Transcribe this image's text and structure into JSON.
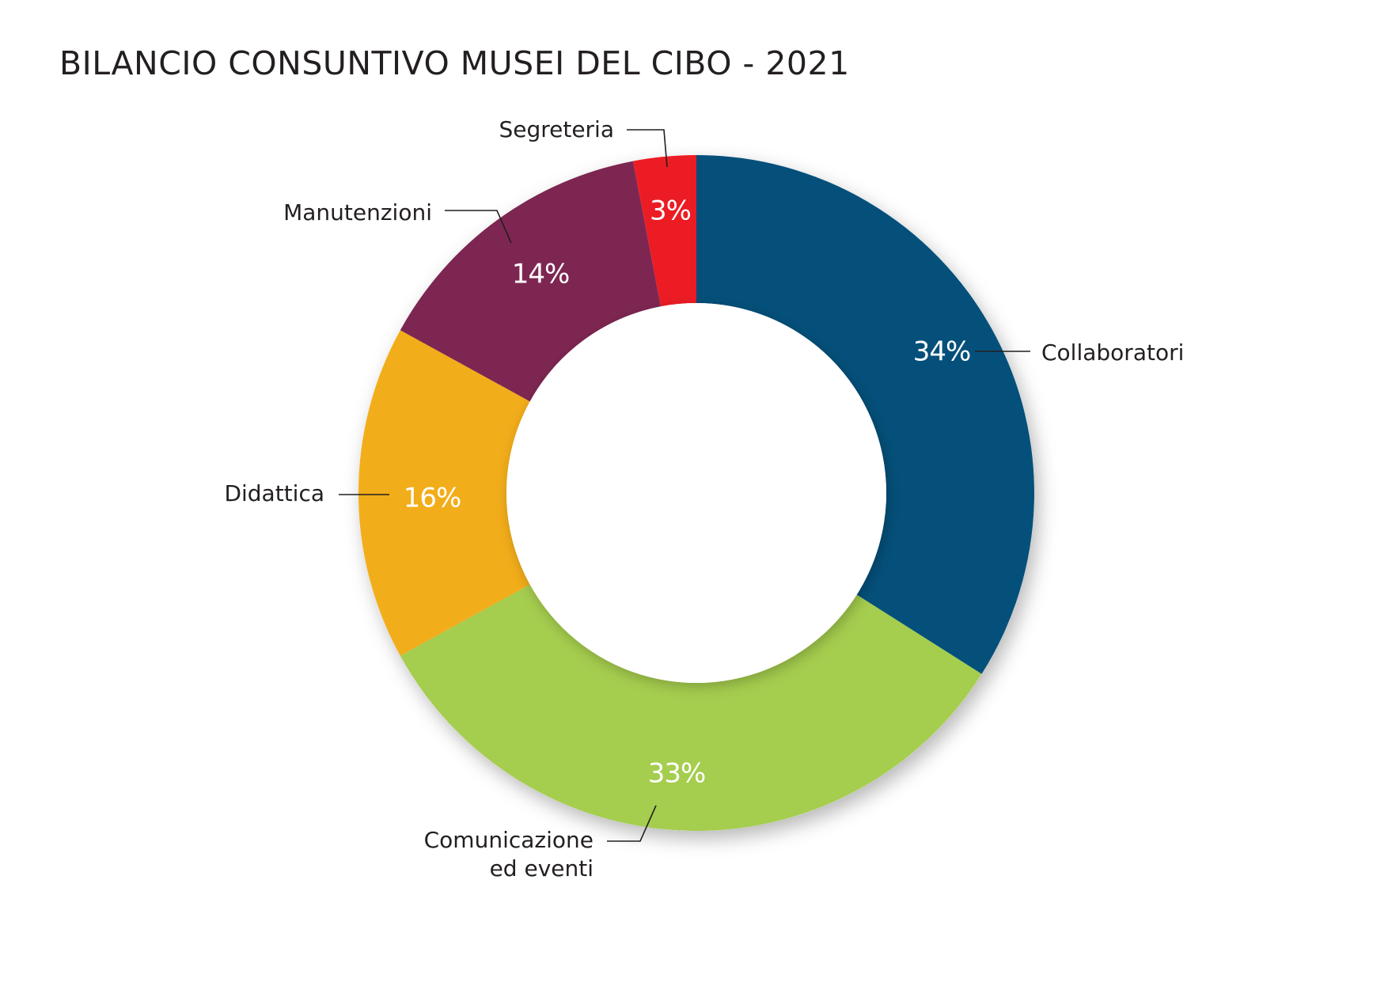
{
  "title": "BILANCIO CONSUNTIVO MUSEI DEL CIBO - 2021",
  "chart_data": {
    "type": "pie",
    "title": "BILANCIO CONSUNTIVO MUSEI DEL CIBO - 2021",
    "style": "donut",
    "unit": "%",
    "slices": [
      {
        "key": "collaboratori",
        "label": "Collaboratori",
        "value": 34,
        "value_label": "34%",
        "color": "#04507a"
      },
      {
        "key": "comunicazione",
        "label": "Comunicazione ed eventi",
        "label_lines": [
          "Comunicazione",
          "ed eventi"
        ],
        "value": 33,
        "value_label": "33%",
        "color": "#a5cd4e"
      },
      {
        "key": "didattica",
        "label": "Didattica",
        "value": 16,
        "value_label": "16%",
        "color": "#f2ad1a"
      },
      {
        "key": "manutenzioni",
        "label": "Manutenzioni",
        "value": 14,
        "value_label": "14%",
        "color": "#7d2651"
      },
      {
        "key": "segreteria",
        "label": "Segreteria",
        "value": 3,
        "value_label": "3%",
        "color": "#ec1c24"
      }
    ]
  }
}
